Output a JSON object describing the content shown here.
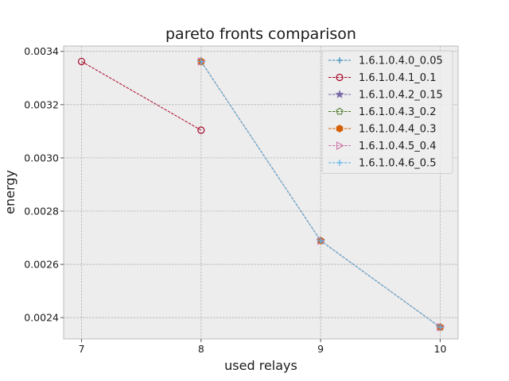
{
  "chart_data": {
    "type": "line",
    "title": "pareto fronts comparison",
    "xlabel": "used relays",
    "ylabel": "energy",
    "xlim": [
      6.85,
      10.15
    ],
    "ylim": [
      0.00232,
      0.00342
    ],
    "xticks": [
      7,
      8,
      9,
      10
    ],
    "xtick_labels": [
      "7",
      "8",
      "9",
      "10"
    ],
    "yticks": [
      0.0024,
      0.0026,
      0.0028,
      0.003,
      0.0032,
      0.0034
    ],
    "ytick_labels": [
      "0.0024",
      "0.0026",
      "0.0028",
      "0.0030",
      "0.0032",
      "0.0034"
    ],
    "grid": true,
    "legend_position": "upper right",
    "series": [
      {
        "name": "1.6.1.0.4.0_0.05",
        "color": "#348abd",
        "marker": "plus",
        "x": [
          8,
          9,
          10
        ],
        "y": [
          0.003362,
          0.002689,
          0.002364
        ]
      },
      {
        "name": "1.6.1.0.4.1_0.1",
        "color": "#a60628",
        "marker": "circle",
        "x": [
          7,
          8
        ],
        "y": [
          0.003362,
          0.003104
        ]
      },
      {
        "name": "1.6.1.0.4.2_0.15",
        "color": "#7a68a6",
        "marker": "star",
        "x": [
          8,
          9,
          10
        ],
        "y": [
          0.003362,
          0.002689,
          0.002364
        ]
      },
      {
        "name": "1.6.1.0.4.3_0.2",
        "color": "#467821",
        "marker": "pentagon",
        "x": [
          8,
          9,
          10
        ],
        "y": [
          0.003362,
          0.002689,
          0.002364
        ]
      },
      {
        "name": "1.6.1.0.4.4_0.3",
        "color": "#d55e00",
        "marker": "hexagon",
        "x": [
          8,
          9,
          10
        ],
        "y": [
          0.003362,
          0.002689,
          0.002364
        ]
      },
      {
        "name": "1.6.1.0.4.5_0.4",
        "color": "#cc79a7",
        "marker": "triangle-right",
        "x": [
          8,
          9,
          10
        ],
        "y": [
          0.003362,
          0.002689,
          0.002364
        ]
      },
      {
        "name": "1.6.1.0.4.6_0.5",
        "color": "#56b4e9",
        "marker": "plus",
        "x": [
          8,
          9,
          10
        ],
        "y": [
          0.003362,
          0.002689,
          0.002364
        ]
      }
    ]
  }
}
